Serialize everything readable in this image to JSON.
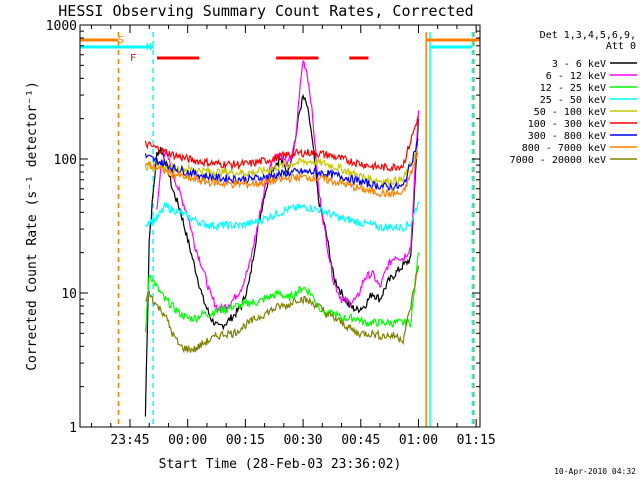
{
  "chart_data": {
    "type": "line",
    "title": "HESSI Observing Summary Count Rates, Corrected",
    "xlabel": "Start Time (28-Feb-03 23:36:02)",
    "ylabel": "Corrected Count Rate (s⁻¹ detector⁻¹)",
    "yscale": "log",
    "ylim": [
      1,
      1000
    ],
    "y_ticks": [
      {
        "value": 1,
        "label": "1"
      },
      {
        "value": 10,
        "label": "10"
      },
      {
        "value": 100,
        "label": "100"
      },
      {
        "value": 1000,
        "label": "1000"
      }
    ],
    "xlim_minutes": [
      -4,
      100
    ],
    "x_ticks": [
      {
        "minute": 9,
        "label": "23:45"
      },
      {
        "minute": 24,
        "label": "00:00"
      },
      {
        "minute": 39,
        "label": "00:15"
      },
      {
        "minute": 54,
        "label": "00:30"
      },
      {
        "minute": 69,
        "label": "00:45"
      },
      {
        "minute": 84,
        "label": "01:00"
      },
      {
        "minute": 99,
        "label": "01:15"
      }
    ],
    "legend_header": [
      "Det 1,3,4,5,6,9,",
      "Att 0"
    ],
    "series": [
      {
        "name": "3 - 6 keV",
        "color": "#000000",
        "minutes": [
          13,
          14,
          15,
          16,
          17,
          18,
          19,
          20,
          22,
          24,
          26,
          28,
          30,
          32,
          34,
          36,
          38,
          40,
          42,
          44,
          46,
          48,
          50,
          52,
          53,
          54,
          55,
          56,
          57,
          58,
          60,
          62,
          64,
          66,
          68,
          70,
          72,
          74,
          76,
          78,
          80,
          82,
          84
        ],
        "values": [
          1.2,
          25,
          55,
          110,
          120,
          100,
          80,
          60,
          42,
          25,
          15,
          9,
          6.5,
          5.5,
          6,
          6.8,
          8,
          12,
          28,
          55,
          85,
          100,
          80,
          140,
          220,
          290,
          250,
          170,
          95,
          50,
          28,
          13,
          10,
          8,
          7.5,
          8,
          10,
          9,
          12,
          14,
          16,
          18,
          200
        ]
      },
      {
        "name": "6 - 12 keV",
        "color": "#ff00ff",
        "minutes": [
          16,
          17,
          18,
          19,
          20,
          22,
          24,
          26,
          28,
          30,
          32,
          34,
          36,
          38,
          40,
          42,
          44,
          46,
          48,
          50,
          52,
          53,
          54,
          55,
          56,
          57,
          58,
          60,
          62,
          64,
          66,
          68,
          70,
          72,
          74,
          76,
          78,
          80,
          82,
          84
        ],
        "values": [
          40,
          85,
          110,
          100,
          80,
          55,
          38,
          22,
          15,
          9.5,
          7.5,
          8,
          9,
          11,
          16,
          30,
          60,
          100,
          110,
          90,
          130,
          300,
          550,
          450,
          280,
          140,
          60,
          25,
          12,
          9,
          8.5,
          9,
          13,
          14,
          11,
          16,
          19,
          18,
          22,
          230
        ]
      },
      {
        "name": "12 - 25 keV",
        "color": "#00ff00",
        "minutes": [
          13,
          14,
          16,
          18,
          20,
          22,
          24,
          26,
          28,
          30,
          32,
          34,
          36,
          38,
          40,
          42,
          44,
          46,
          48,
          50,
          52,
          54,
          56,
          58,
          60,
          62,
          64,
          66,
          68,
          70,
          72,
          74,
          76,
          78,
          80,
          82,
          84
        ],
        "values": [
          5,
          14,
          11,
          9,
          8,
          7,
          6.5,
          6.5,
          7,
          7,
          7.5,
          7.5,
          8,
          8,
          8.5,
          8.5,
          9,
          9.5,
          10,
          9,
          10,
          11,
          10,
          8,
          7,
          7,
          6.5,
          6.5,
          6.5,
          6,
          6,
          6,
          6,
          6,
          6,
          6,
          20
        ]
      },
      {
        "name": "25 - 50 keV",
        "color": "#00ffff",
        "minutes": [
          13,
          16,
          18,
          20,
          22,
          24,
          26,
          28,
          30,
          32,
          34,
          36,
          38,
          40,
          42,
          44,
          46,
          48,
          50,
          52,
          54,
          56,
          58,
          60,
          62,
          64,
          66,
          68,
          70,
          72,
          74,
          76,
          78,
          80,
          82,
          84
        ],
        "values": [
          33,
          36,
          44,
          42,
          40,
          37,
          35,
          33,
          32,
          32,
          32,
          32,
          32,
          33,
          34,
          36,
          38,
          40,
          42,
          43,
          44,
          43,
          42,
          40,
          38,
          36,
          35,
          34,
          33,
          32,
          31,
          31,
          31,
          31,
          33,
          48
        ]
      },
      {
        "name": "50 - 100 keV",
        "color": "#c8c800",
        "minutes": [
          13,
          16,
          20,
          24,
          28,
          32,
          36,
          40,
          44,
          48,
          52,
          56,
          60,
          64,
          68,
          72,
          76,
          80,
          84
        ],
        "values": [
          88,
          88,
          86,
          84,
          82,
          80,
          79,
          79,
          82,
          88,
          94,
          96,
          92,
          84,
          76,
          70,
          68,
          70,
          120
        ]
      },
      {
        "name": "100 - 300 keV",
        "color": "#ff0000",
        "minutes": [
          13,
          16,
          20,
          24,
          28,
          32,
          36,
          40,
          44,
          48,
          52,
          56,
          60,
          64,
          68,
          72,
          76,
          80,
          84
        ],
        "values": [
          130,
          120,
          108,
          100,
          95,
          92,
          91,
          92,
          97,
          104,
          110,
          112,
          108,
          100,
          94,
          88,
          86,
          90,
          210
        ]
      },
      {
        "name": "300 - 800 keV",
        "color": "#0000ff",
        "minutes": [
          13,
          16,
          20,
          24,
          28,
          32,
          36,
          40,
          44,
          48,
          52,
          56,
          60,
          64,
          68,
          72,
          76,
          80,
          84
        ],
        "values": [
          105,
          97,
          86,
          80,
          75,
          72,
          71,
          71,
          73,
          77,
          80,
          80,
          78,
          74,
          69,
          64,
          62,
          62,
          140
        ]
      },
      {
        "name": "800 - 7000 keV",
        "color": "#ff8000",
        "minutes": [
          13,
          16,
          20,
          24,
          28,
          32,
          36,
          40,
          44,
          48,
          52,
          56,
          60,
          64,
          68,
          72,
          76,
          80,
          84
        ],
        "values": [
          92,
          86,
          78,
          72,
          68,
          66,
          65,
          65,
          67,
          70,
          73,
          73,
          70,
          66,
          61,
          57,
          55,
          55,
          110
        ]
      },
      {
        "name": "7000 - 20000 keV",
        "color": "#808000",
        "minutes": [
          13,
          14,
          16,
          18,
          20,
          22,
          24,
          26,
          28,
          30,
          32,
          34,
          36,
          38,
          40,
          42,
          44,
          46,
          48,
          50,
          52,
          54,
          56,
          58,
          60,
          62,
          64,
          66,
          68,
          70,
          72,
          74,
          76,
          78,
          80,
          82,
          84
        ],
        "values": [
          9,
          10,
          8,
          7,
          5,
          4,
          3.8,
          3.8,
          4.2,
          4.5,
          4.8,
          5,
          5,
          5.5,
          6,
          6.5,
          7,
          7.5,
          8,
          8,
          9,
          9,
          8.5,
          8,
          7,
          6.5,
          6,
          5.5,
          5,
          5,
          5,
          4.8,
          4.8,
          4.8,
          4.5,
          8,
          16
        ]
      }
    ],
    "status_bars": [
      {
        "label": "S",
        "color": "#ff8000",
        "segments": [
          [
            -4,
            6
          ],
          [
            86,
            100
          ]
        ]
      },
      {
        "label": "N",
        "color": "#00ffff",
        "segments": [
          [
            -4,
            15
          ],
          [
            87,
            98
          ]
        ]
      },
      {
        "label": "F",
        "color": "#ff0000",
        "segments": [
          [
            16,
            27
          ],
          [
            47,
            58
          ],
          [
            66,
            71
          ]
        ]
      }
    ],
    "vertical_markers": [
      {
        "minute": 6,
        "color": "#ff8000",
        "dashed": true
      },
      {
        "minute": 15,
        "color": "#00ffff",
        "dashed": true
      },
      {
        "minute": 86,
        "color": "#ff8000",
        "dashed": false
      },
      {
        "minute": 87,
        "color": "#00ffff",
        "dashed": false
      },
      {
        "minute": 98,
        "color": "#00ffff",
        "dashed": true
      },
      {
        "minute": 98.4,
        "color": "#ff8000",
        "dashed": true
      }
    ],
    "grid": false,
    "legend_position": "right",
    "footer_date": "10-Apr-2010 04:32"
  }
}
